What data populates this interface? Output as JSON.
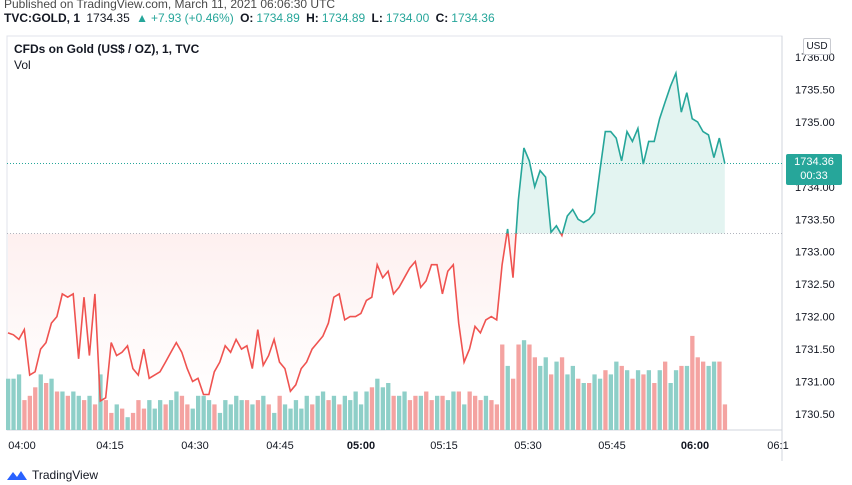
{
  "header": {
    "published": "Published on TradingView.com, March 11, 2021 06:06:30 UTC",
    "symbol": "TVC:GOLD, 1",
    "last": "1734.35",
    "change": "+7.93 (+0.46%)",
    "open_label": "O:",
    "open": "1734.89",
    "high_label": "H:",
    "high": "1734.89",
    "low_label": "L:",
    "low": "1734.00",
    "close_label": "C:",
    "close": "1734.36"
  },
  "legend": {
    "title": "CFDs on Gold (US$ / OZ), 1, TVC",
    "volume_label": "Vol"
  },
  "currency_button": "USD",
  "last_price_badge": {
    "price": "1734.36",
    "countdown": "00:33"
  },
  "footer": {
    "brand": "TradingView"
  },
  "colors": {
    "up": "#26a69a",
    "down": "#ef5350",
    "up_fill": "#e3f4f1",
    "down_fill": "#fde2e1",
    "vol_up": "#8ecfc8",
    "vol_down": "#f4a3a1"
  },
  "chart_data": {
    "type": "line",
    "baseline": 1733.28,
    "ylim": [
      1730.2,
      1736.1
    ],
    "y_ticks": [
      "1736.00",
      "1735.50",
      "1735.00",
      "1734.50",
      "1734.00",
      "1733.50",
      "1733.00",
      "1732.50",
      "1732.00",
      "1731.50",
      "1731.00",
      "1730.50"
    ],
    "x_ticks": [
      "04:00",
      "04:15",
      "04:30",
      "04:45",
      "05:00",
      "05:15",
      "05:30",
      "05:45",
      "06:00",
      "06:1"
    ],
    "x_start": "04:00",
    "interval_minutes": 1,
    "series": [
      {
        "values": [
          1731.75,
          1731.72,
          1731.65,
          1731.8,
          1731.1,
          1731.15,
          1731.5,
          1731.6,
          1731.9,
          1732.0,
          1732.35,
          1732.3,
          1732.35,
          1731.35,
          1732.3,
          1731.4,
          1732.35,
          1730.7,
          1730.75,
          1731.6,
          1731.4,
          1731.45,
          1731.55,
          1731.2,
          1731.1,
          1731.5,
          1731.05,
          1731.1,
          1731.15,
          1731.3,
          1731.45,
          1731.6,
          1731.45,
          1731.2,
          1731.0,
          1731.05,
          1730.8,
          1730.8,
          1731.15,
          1731.3,
          1731.55,
          1731.45,
          1731.65,
          1731.5,
          1731.55,
          1731.2,
          1731.8,
          1731.25,
          1731.4,
          1731.65,
          1731.3,
          1731.2,
          1730.85,
          1730.95,
          1731.2,
          1731.3,
          1731.5,
          1731.6,
          1731.7,
          1731.9,
          1732.3,
          1732.35,
          1731.95,
          1732.0,
          1732.0,
          1732.05,
          1732.25,
          1732.3,
          1732.8,
          1732.6,
          1732.7,
          1732.35,
          1732.45,
          1732.6,
          1732.75,
          1732.85,
          1732.45,
          1732.55,
          1732.8,
          1732.8,
          1732.35,
          1732.7,
          1732.8,
          1731.9,
          1731.3,
          1731.5,
          1731.85,
          1731.75,
          1731.95,
          1732.0,
          1731.95,
          1732.8,
          1733.35,
          1732.6,
          1733.8,
          1734.6,
          1734.4,
          1734.0,
          1734.25,
          1734.15,
          1733.3,
          1733.4,
          1733.25,
          1733.55,
          1733.65,
          1733.5,
          1733.45,
          1733.5,
          1733.6,
          1734.25,
          1734.85,
          1734.85,
          1734.75,
          1734.4,
          1734.85,
          1734.7,
          1734.9,
          1734.35,
          1734.7,
          1734.7,
          1735.05,
          1735.3,
          1735.55,
          1735.75,
          1735.15,
          1735.45,
          1735.05,
          1735.0,
          1734.85,
          1734.8,
          1734.45,
          1734.75,
          1734.36
        ]
      }
    ],
    "volume": [
      {
        "v": 0.6,
        "up": true
      },
      {
        "v": 0.6,
        "up": true
      },
      {
        "v": 0.65,
        "up": true
      },
      {
        "v": 0.35,
        "up": false
      },
      {
        "v": 0.4,
        "up": false
      },
      {
        "v": 0.5,
        "up": false
      },
      {
        "v": 0.65,
        "up": true
      },
      {
        "v": 0.55,
        "up": false
      },
      {
        "v": 0.6,
        "up": true
      },
      {
        "v": 0.45,
        "up": false
      },
      {
        "v": 0.45,
        "up": true
      },
      {
        "v": 0.4,
        "up": false
      },
      {
        "v": 0.45,
        "up": true
      },
      {
        "v": 0.4,
        "up": true
      },
      {
        "v": 0.35,
        "up": false
      },
      {
        "v": 0.4,
        "up": true
      },
      {
        "v": 0.3,
        "up": false
      },
      {
        "v": 0.65,
        "up": true
      },
      {
        "v": 0.35,
        "up": false
      },
      {
        "v": 0.2,
        "up": false
      },
      {
        "v": 0.3,
        "up": true
      },
      {
        "v": 0.25,
        "up": false
      },
      {
        "v": 0.15,
        "up": true
      },
      {
        "v": 0.2,
        "up": false
      },
      {
        "v": 0.35,
        "up": false
      },
      {
        "v": 0.25,
        "up": false
      },
      {
        "v": 0.35,
        "up": true
      },
      {
        "v": 0.25,
        "up": true
      },
      {
        "v": 0.35,
        "up": true
      },
      {
        "v": 0.3,
        "up": false
      },
      {
        "v": 0.35,
        "up": true
      },
      {
        "v": 0.45,
        "up": true
      },
      {
        "v": 0.4,
        "up": false
      },
      {
        "v": 0.3,
        "up": false
      },
      {
        "v": 0.25,
        "up": true
      },
      {
        "v": 0.4,
        "up": true
      },
      {
        "v": 0.4,
        "up": true
      },
      {
        "v": 0.35,
        "up": true
      },
      {
        "v": 0.3,
        "up": false
      },
      {
        "v": 0.2,
        "up": true
      },
      {
        "v": 0.35,
        "up": true
      },
      {
        "v": 0.3,
        "up": true
      },
      {
        "v": 0.4,
        "up": true
      },
      {
        "v": 0.35,
        "up": true
      },
      {
        "v": 0.35,
        "up": false
      },
      {
        "v": 0.3,
        "up": true
      },
      {
        "v": 0.35,
        "up": false
      },
      {
        "v": 0.4,
        "up": true
      },
      {
        "v": 0.3,
        "up": false
      },
      {
        "v": 0.2,
        "up": true
      },
      {
        "v": 0.4,
        "up": false
      },
      {
        "v": 0.3,
        "up": true
      },
      {
        "v": 0.25,
        "up": true
      },
      {
        "v": 0.35,
        "up": true
      },
      {
        "v": 0.25,
        "up": true
      },
      {
        "v": 0.4,
        "up": true
      },
      {
        "v": 0.3,
        "up": false
      },
      {
        "v": 0.4,
        "up": true
      },
      {
        "v": 0.45,
        "up": true
      },
      {
        "v": 0.35,
        "up": false
      },
      {
        "v": 0.4,
        "up": true
      },
      {
        "v": 0.3,
        "up": false
      },
      {
        "v": 0.4,
        "up": true
      },
      {
        "v": 0.35,
        "up": true
      },
      {
        "v": 0.45,
        "up": true
      },
      {
        "v": 0.3,
        "up": true
      },
      {
        "v": 0.45,
        "up": true
      },
      {
        "v": 0.5,
        "up": false
      },
      {
        "v": 0.6,
        "up": true
      },
      {
        "v": 0.5,
        "up": true
      },
      {
        "v": 0.55,
        "up": true
      },
      {
        "v": 0.4,
        "up": false
      },
      {
        "v": 0.4,
        "up": true
      },
      {
        "v": 0.45,
        "up": true
      },
      {
        "v": 0.35,
        "up": false
      },
      {
        "v": 0.4,
        "up": false
      },
      {
        "v": 0.4,
        "up": true
      },
      {
        "v": 0.45,
        "up": false
      },
      {
        "v": 0.35,
        "up": false
      },
      {
        "v": 0.4,
        "up": true
      },
      {
        "v": 0.4,
        "up": false
      },
      {
        "v": 0.35,
        "up": true
      },
      {
        "v": 0.45,
        "up": true
      },
      {
        "v": 0.45,
        "up": false
      },
      {
        "v": 0.3,
        "up": true
      },
      {
        "v": 0.45,
        "up": false
      },
      {
        "v": 0.4,
        "up": false
      },
      {
        "v": 0.35,
        "up": false
      },
      {
        "v": 0.4,
        "up": true
      },
      {
        "v": 0.35,
        "up": false
      },
      {
        "v": 0.3,
        "up": false
      },
      {
        "v": 1.0,
        "up": false
      },
      {
        "v": 0.75,
        "up": true
      },
      {
        "v": 0.6,
        "up": false
      },
      {
        "v": 1.0,
        "up": false
      },
      {
        "v": 1.05,
        "up": true
      },
      {
        "v": 1.0,
        "up": false
      },
      {
        "v": 0.85,
        "up": false
      },
      {
        "v": 0.75,
        "up": true
      },
      {
        "v": 0.85,
        "up": true
      },
      {
        "v": 0.65,
        "up": false
      },
      {
        "v": 0.8,
        "up": true
      },
      {
        "v": 0.85,
        "up": false
      },
      {
        "v": 0.65,
        "up": true
      },
      {
        "v": 0.75,
        "up": true
      },
      {
        "v": 0.6,
        "up": false
      },
      {
        "v": 0.55,
        "up": true
      },
      {
        "v": 0.55,
        "up": false
      },
      {
        "v": 0.65,
        "up": true
      },
      {
        "v": 0.6,
        "up": true
      },
      {
        "v": 0.7,
        "up": false
      },
      {
        "v": 0.65,
        "up": true
      },
      {
        "v": 0.8,
        "up": true
      },
      {
        "v": 0.75,
        "up": false
      },
      {
        "v": 0.7,
        "up": true
      },
      {
        "v": 0.6,
        "up": false
      },
      {
        "v": 0.7,
        "up": true
      },
      {
        "v": 0.65,
        "up": false
      },
      {
        "v": 0.7,
        "up": true
      },
      {
        "v": 0.55,
        "up": false
      },
      {
        "v": 0.7,
        "up": true
      },
      {
        "v": 0.8,
        "up": false
      },
      {
        "v": 0.55,
        "up": true
      },
      {
        "v": 0.7,
        "up": true
      },
      {
        "v": 0.75,
        "up": false
      },
      {
        "v": 0.75,
        "up": true
      },
      {
        "v": 1.1,
        "up": false
      },
      {
        "v": 0.85,
        "up": false
      },
      {
        "v": 0.8,
        "up": false
      },
      {
        "v": 0.75,
        "up": true
      },
      {
        "v": 0.8,
        "up": true
      },
      {
        "v": 0.8,
        "up": false
      },
      {
        "v": 0.3,
        "up": false
      }
    ]
  }
}
